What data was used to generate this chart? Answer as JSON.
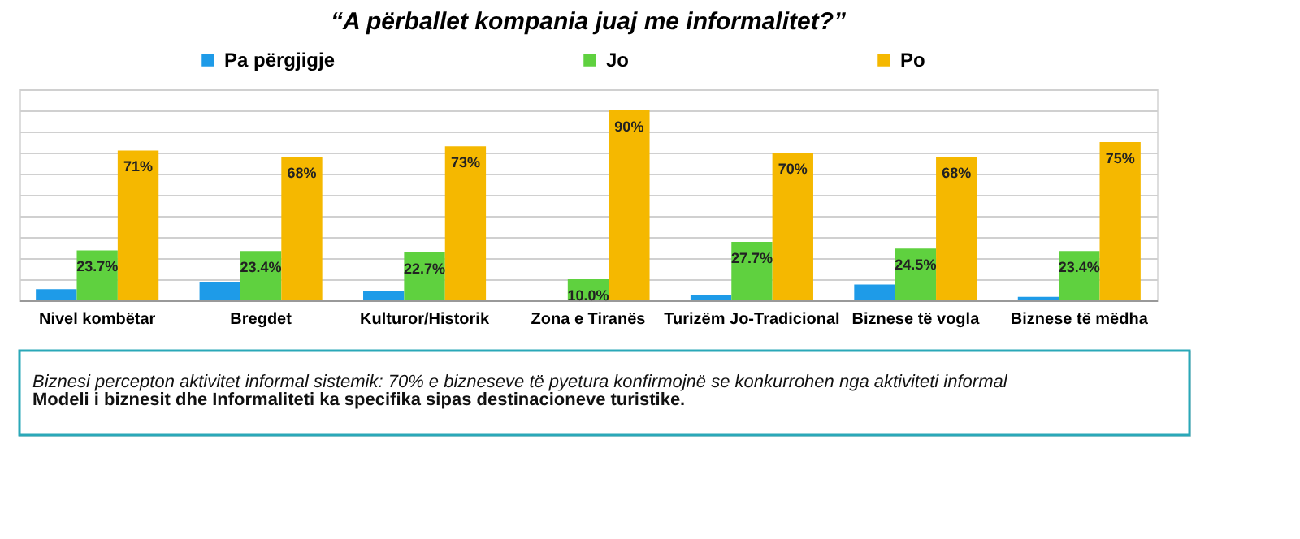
{
  "chart_data": {
    "type": "bar",
    "title": "“A përballet kompania juaj me informalitet?”",
    "categories": [
      "Nivel kombëtar",
      "Bregdet",
      "Kulturor/Historik",
      "Zona e Tiranës",
      "Turizëm Jo-Tradicional",
      "Biznese të vogla",
      "Biznese të mëdha"
    ],
    "series": [
      {
        "name": "Pa përgjigje",
        "color": "#1e9be8",
        "values": [
          5.3,
          8.6,
          4.3,
          0,
          2.3,
          7.5,
          1.6
        ]
      },
      {
        "name": "Jo",
        "color": "#5fd13f",
        "values": [
          23.7,
          23.4,
          22.7,
          10.0,
          27.7,
          24.5,
          23.4
        ],
        "value_labels": [
          "23.7%",
          "23.4%",
          "22.7%",
          "10.0%",
          "27.7%",
          "24.5%",
          "23.4%"
        ]
      },
      {
        "name": "Po",
        "color": "#f5b800",
        "values": [
          71,
          68,
          73,
          90,
          70,
          68,
          75
        ],
        "value_labels": [
          "71%",
          "68%",
          "73%",
          "90%",
          "70%",
          "68%",
          "75%"
        ]
      }
    ],
    "ylim": [
      0,
      100
    ],
    "grid": "y",
    "legend": "top",
    "tick_labels": "x",
    "annotations": [
      "Biznesi percepton aktivitet informal sistemik: 70% e bizneseve të pyetura konfirmojnë se konkurrohen nga aktiviteti informal",
      "Modeli i biznesit dhe Informaliteti ka specifika sipas destinacioneve turistike."
    ]
  }
}
